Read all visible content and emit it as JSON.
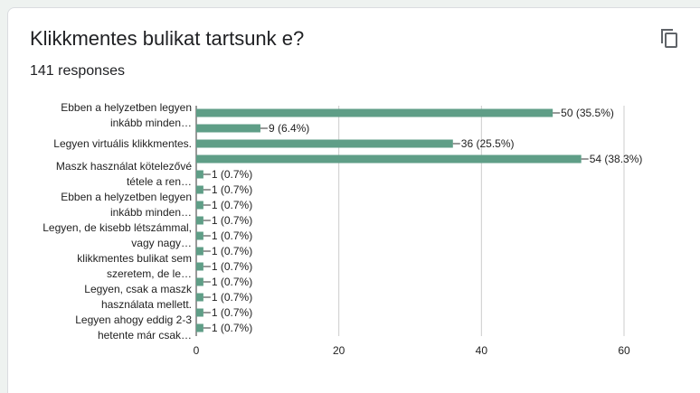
{
  "title": "Klikkmentes bulikat tartsunk e?",
  "subtitle": "141 responses",
  "chart_data": {
    "type": "bar",
    "orientation": "horizontal",
    "categories": [
      "Ebben a helyzetben legyen inkább minden…",
      null,
      "Legyen virtuális klikkmentes.",
      null,
      "Maszk használat kötelezővé tétele a ren…",
      null,
      "Ebben a helyzetben legyen inkább minden…",
      null,
      "Legyen, de kisebb létszámmal, vagy nagy…",
      null,
      "klikkmentes bulikat sem szeretem, de le…",
      null,
      "Legyen, csak a maszk használata mellett.",
      null,
      "Legyen ahogy eddig 2-3 hetente már csak…"
    ],
    "values": [
      50,
      9,
      36,
      54,
      1,
      1,
      1,
      1,
      1,
      1,
      1,
      1,
      1,
      1,
      1
    ],
    "value_labels": [
      "50 (35.5%)",
      "9 (6.4%)",
      "36 (25.5%)",
      "54 (38.3%)",
      "1 (0.7%)",
      "1 (0.7%)",
      "1 (0.7%)",
      "1 (0.7%)",
      "1 (0.7%)",
      "1 (0.7%)",
      "1 (0.7%)",
      "1 (0.7%)",
      "1 (0.7%)",
      "1 (0.7%)",
      "1 (0.7%)"
    ],
    "color": "#5f9e87",
    "xlim": [
      0,
      60
    ],
    "xticks": [
      0,
      20,
      40,
      60
    ],
    "grid": true
  }
}
